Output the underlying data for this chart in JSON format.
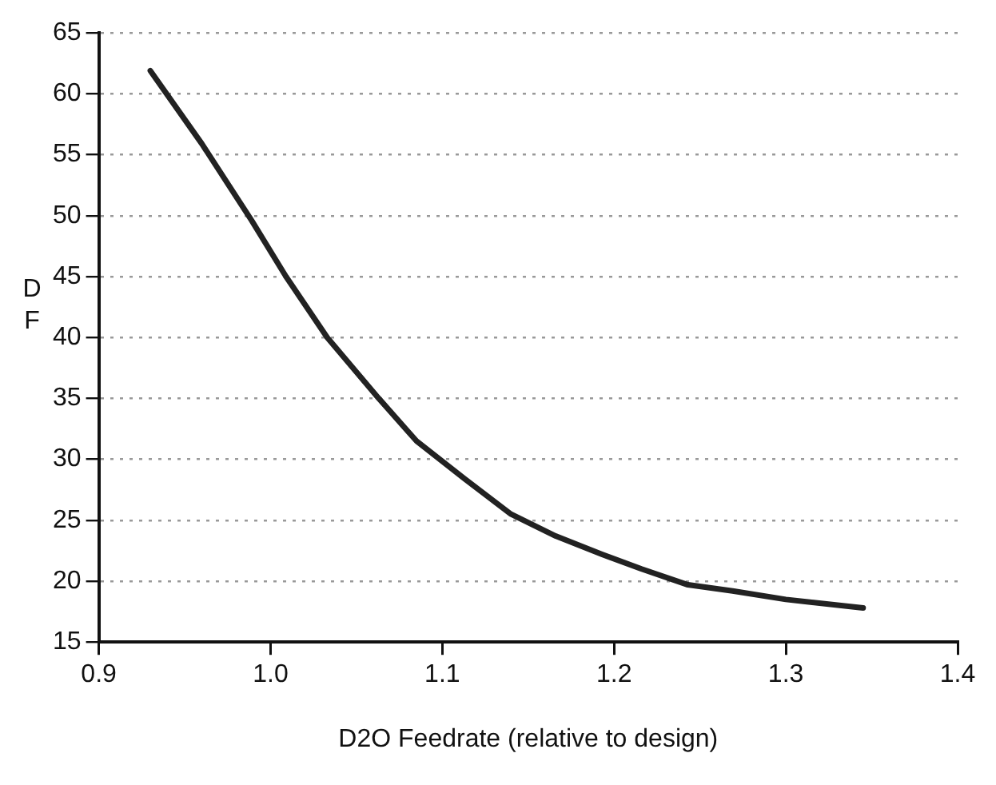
{
  "chart_data": {
    "type": "line",
    "xlabel": "D2O Feedrate (relative to design)",
    "ylabel": "DF",
    "series": [
      {
        "color": "#222222",
        "x": [
          0.93,
          0.96,
          0.989,
          1.009,
          1.033,
          1.063,
          1.085,
          1.113,
          1.14,
          1.166,
          1.193,
          1.216,
          1.243,
          1.269,
          1.3,
          1.345
        ],
        "values": [
          61.9,
          55.9,
          49.6,
          45,
          40,
          35,
          31.5,
          28.4,
          25.5,
          23.7,
          22.2,
          21.0,
          19.7,
          19.2,
          18.5,
          17.8
        ]
      }
    ],
    "xlim": [
      0.9,
      1.4
    ],
    "xticks": [
      0.9,
      {
        "value": 1,
        "label": "1.0"
      },
      1.1,
      1.2,
      1.3,
      1.4
    ],
    "ylim": [
      15,
      65
    ],
    "yticks": [
      15,
      20,
      25,
      30,
      35,
      40,
      45,
      50,
      55,
      60,
      65
    ],
    "grid": "y",
    "legend": false,
    "marker": "none",
    "line_style": "solid"
  }
}
